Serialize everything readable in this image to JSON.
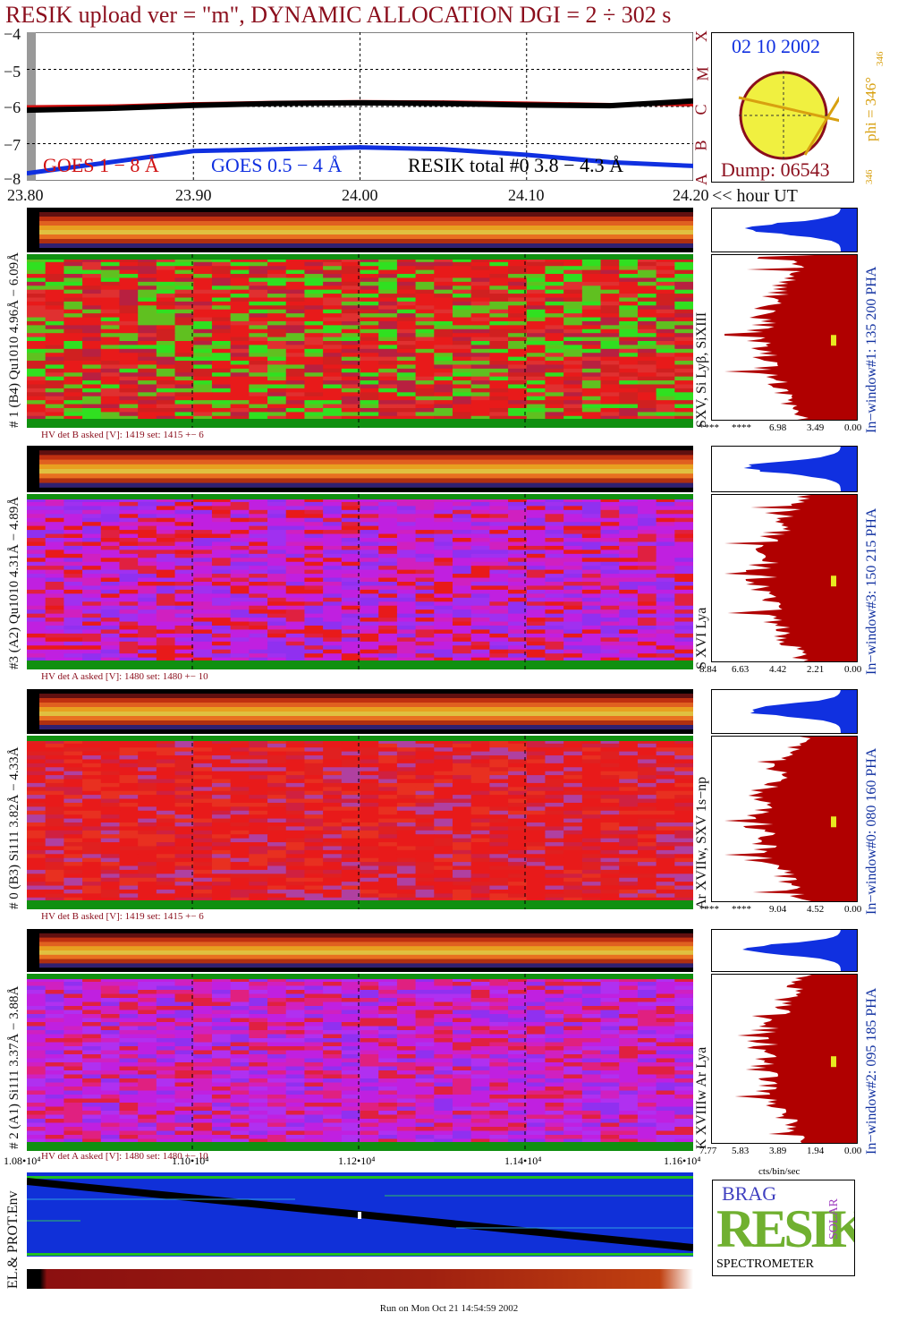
{
  "title": "RESIK upload ver = \"m\", DYNAMIC ALLOCATION  DGI =   2 ÷ 302 s",
  "colors": {
    "title": "#8b0e1c",
    "goes_long": "#d01010",
    "goes_short": "#1030e0",
    "resik": "#000000",
    "hist": "#b00000",
    "hist_top": "#1030e0",
    "marker": "#e8e820",
    "bg_red": "#e81a1a",
    "bg_magenta": "#c020e0",
    "bg_green": "#20b020"
  },
  "lightcurve": {
    "y_ticks": [
      "−4",
      "−5",
      "−6",
      "−7",
      "−8"
    ],
    "x_ticks": [
      "23.80",
      "23.90",
      "24.00",
      "24.10",
      "24.20"
    ],
    "x_unit": "<< hour UT",
    "right_letters": [
      "X",
      "M",
      "C",
      "B",
      "A"
    ],
    "legend_goes_long": "GOES 1 − 8 Å",
    "legend_goes_short": "GOES 0.5 − 4 Å",
    "legend_resik": "RESIK total #0  3.8 − 4.3 Å"
  },
  "sun": {
    "date": "02 10 2002",
    "dump": "Dump: 06543",
    "phi": "phi = 346°",
    "phi_small": "346",
    "phi_small2": "346"
  },
  "panels": [
    {
      "left_label": "# 1 (B4) Qu1010 4.96Å − 6.09Å",
      "right_label": "SXV, Si Lyβ, SiXIII",
      "window_label": "In−window#1:  135 200 PHA",
      "hv": "HV det B asked [V]:  1419 set:  1415 +−    6",
      "pha_ticks": [
        "****",
        "****",
        "6.98",
        "3.49",
        "0.00"
      ]
    },
    {
      "left_label": "#3 (A2) Qu1010  4.31Å − 4.89Å",
      "right_label": "S XVI Lya",
      "window_label": "In−window#3:  150 215 PHA",
      "hv": "HV det A asked [V]:  1480 set:  1480 +−   10",
      "pha_ticks": [
        "8.84",
        "6.63",
        "4.42",
        "2.21",
        "0.00"
      ]
    },
    {
      "left_label": "# 0 (B3) Si111  3.82Å − 4.33Å",
      "right_label": "Ar XVIIw,  SXV 1s−np",
      "window_label": "In−window#0:  080 160 PHA",
      "hv": "HV det B asked [V]:  1419 set:  1415 +−    6",
      "pha_ticks": [
        "****",
        "****",
        "9.04",
        "4.52",
        "0.00"
      ]
    },
    {
      "left_label": "# 2 (A1) Si111  3.37Å − 3.88Å",
      "right_label": "K XVIIIw  Ar Lya",
      "window_label": "In−window#2:  095 185 PHA",
      "hv": "HV det A asked [V]:  1480 set:  1480 +−   10",
      "pha_ticks": [
        "7.77",
        "5.83",
        "3.89",
        "1.94",
        "0.00"
      ]
    }
  ],
  "cts_label": "cts/bin/sec",
  "env": {
    "label": "EL.& PROT.Env",
    "x_ticks": [
      "1.08•10⁴",
      "1.10•10⁴",
      "1.12•10⁴",
      "1.14•10⁴",
      "1.16•10⁴"
    ]
  },
  "logo": {
    "line1": "BRAG",
    "word": "RESIK",
    "solar": "SOLAR",
    "spectrometer": "SPECTROMETER"
  },
  "footer": "Run on Mon Oct 21 14:54:59 2002",
  "chart_data": {
    "type": "line",
    "title": "RESIK upload ver = \"m\", DYNAMIC ALLOCATION  DGI =   2 ÷ 302 s",
    "xlabel": "<< hour UT",
    "ylabel": "",
    "x": [
      23.8,
      23.85,
      23.9,
      23.95,
      24.0,
      24.05,
      24.1,
      24.15,
      24.2
    ],
    "xlim": [
      23.8,
      24.2
    ],
    "ylim": [
      -8,
      -4
    ],
    "grid": true,
    "series": [
      {
        "name": "GOES 1 − 8 Å",
        "values": [
          -6.0,
          -5.98,
          -5.92,
          -5.88,
          -5.86,
          -5.87,
          -5.9,
          -5.94,
          -5.96
        ]
      },
      {
        "name": "GOES 0.5 − 4 Å",
        "values": [
          -7.8,
          -7.5,
          -7.2,
          -7.15,
          -7.1,
          -7.15,
          -7.3,
          -7.5,
          -7.6
        ]
      },
      {
        "name": "RESIK total #0  3.8 − 4.3 Å",
        "values": [
          -6.1,
          -6.05,
          -5.97,
          -5.92,
          -5.9,
          -5.92,
          -5.96,
          -5.98,
          -5.85
        ]
      }
    ]
  }
}
